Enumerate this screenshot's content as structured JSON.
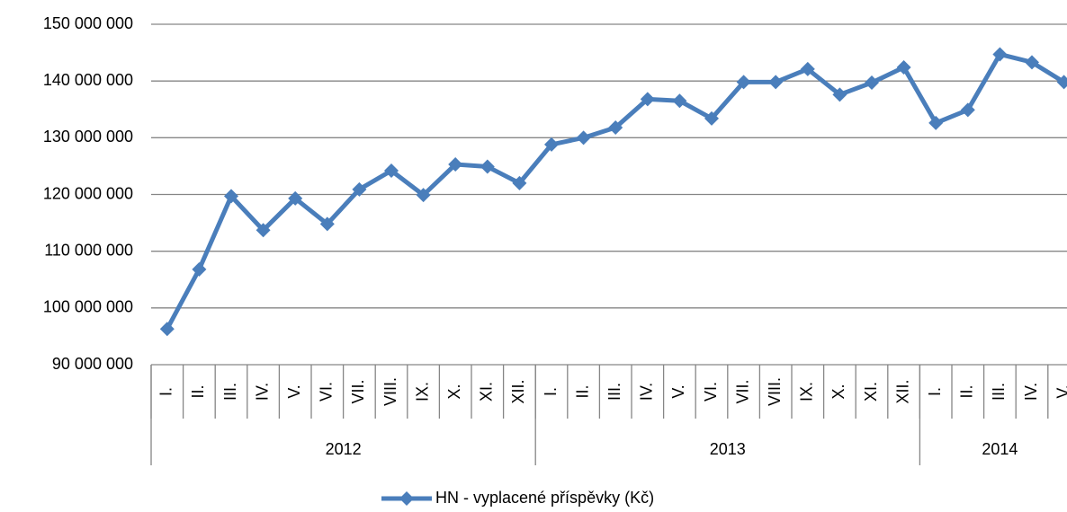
{
  "chart_data": {
    "type": "line",
    "categories": [
      "I.",
      "II.",
      "III.",
      "IV.",
      "V.",
      "VI.",
      "VII.",
      "VIII.",
      "IX.",
      "X.",
      "XI.",
      "XII.",
      "I.",
      "II.",
      "III.",
      "IV.",
      "V.",
      "VI.",
      "VII.",
      "VIII.",
      "IX.",
      "X.",
      "XI.",
      "XII.",
      "I.",
      "II.",
      "III.",
      "IV.",
      "V."
    ],
    "x_groups": [
      {
        "name": "2012",
        "count": 12
      },
      {
        "name": "2013",
        "count": 12
      },
      {
        "name": "2014",
        "count": 5
      }
    ],
    "series": [
      {
        "name": "HN - vyplacené příspěvky (Kč)",
        "color": "#4a7ebb",
        "values": [
          96300000,
          106800000,
          119700000,
          113700000,
          119300000,
          114800000,
          120900000,
          124200000,
          119900000,
          125300000,
          124900000,
          122000000,
          128800000,
          130000000,
          131800000,
          136800000,
          136500000,
          133400000,
          139800000,
          139800000,
          142100000,
          137600000,
          139700000,
          142400000,
          132600000,
          134900000,
          144700000,
          143300000,
          139800000
        ]
      }
    ],
    "ylim": [
      90000000,
      150000000
    ],
    "yticks": [
      {
        "value": 90000000,
        "label": "90 000 000"
      },
      {
        "value": 100000000,
        "label": "100 000 000"
      },
      {
        "value": 110000000,
        "label": "110 000 000"
      },
      {
        "value": 120000000,
        "label": "120 000 000"
      },
      {
        "value": 130000000,
        "label": "130 000 000"
      },
      {
        "value": 140000000,
        "label": "140 000 000"
      },
      {
        "value": 150000000,
        "label": "150 000 000"
      }
    ],
    "grid": true,
    "legend": "bottom"
  }
}
